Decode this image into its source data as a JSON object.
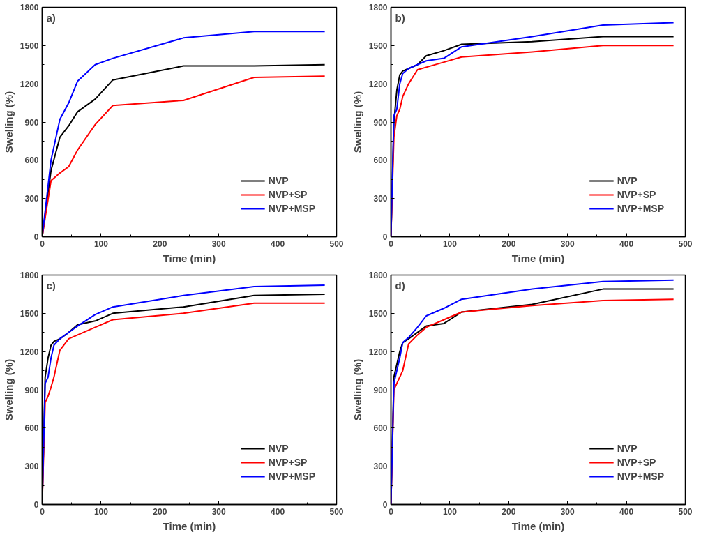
{
  "chart_data": [
    {
      "type": "line",
      "xlabel": "Time (min)",
      "ylabel": "Swelling (%)",
      "annotations": [
        "a)"
      ],
      "x": [
        0,
        15,
        30,
        45,
        60,
        90,
        120,
        240,
        360,
        480
      ],
      "xlim": [
        0,
        500
      ],
      "xticks": [
        0,
        100,
        200,
        300,
        400,
        500
      ],
      "ylim": [
        0,
        1800
      ],
      "yticks": [
        0,
        300,
        600,
        900,
        1200,
        1500,
        1800
      ],
      "legend": "bottom right",
      "grid": false,
      "marker": "none",
      "line_style": "solid",
      "series": [
        {
          "name": "NVP",
          "color": "#000000",
          "values": [
            0,
            520,
            780,
            870,
            980,
            1080,
            1230,
            1340,
            1340,
            1350
          ]
        },
        {
          "name": "NVP+SP",
          "color": "#ff0000",
          "values": [
            0,
            440,
            500,
            550,
            680,
            880,
            1030,
            1070,
            1250,
            1260
          ]
        },
        {
          "name": "NVP+MSP",
          "color": "#0000ff",
          "values": [
            0,
            600,
            920,
            1050,
            1220,
            1350,
            1400,
            1560,
            1610,
            1610
          ]
        }
      ]
    },
    {
      "type": "line",
      "xlabel": "Time (min)",
      "ylabel": "Swelling (%)",
      "annotations": [
        "b)"
      ],
      "x": [
        0,
        5,
        10,
        15,
        20,
        30,
        45,
        60,
        90,
        120,
        240,
        360,
        480
      ],
      "xlim": [
        0,
        500
      ],
      "xticks": [
        0,
        100,
        200,
        300,
        400,
        500
      ],
      "ylim": [
        0,
        1800
      ],
      "yticks": [
        0,
        300,
        600,
        900,
        1200,
        1500,
        1800
      ],
      "legend": "bottom right",
      "grid": false,
      "marker": "none",
      "line_style": "solid",
      "series": [
        {
          "name": "NVP",
          "color": "#000000",
          "values": [
            0,
            900,
            1150,
            1270,
            1300,
            1320,
            1350,
            1420,
            1460,
            1510,
            1530,
            1570,
            1570
          ]
        },
        {
          "name": "NVP+SP",
          "color": "#ff0000",
          "values": [
            0,
            780,
            950,
            1000,
            1100,
            1200,
            1310,
            1330,
            1370,
            1410,
            1450,
            1500,
            1500
          ]
        },
        {
          "name": "NVP+MSP",
          "color": "#0000ff",
          "values": [
            0,
            950,
            1000,
            1200,
            1280,
            1320,
            1350,
            1380,
            1400,
            1490,
            1570,
            1660,
            1680
          ]
        }
      ]
    },
    {
      "type": "line",
      "xlabel": "Time (min)",
      "ylabel": "Swelling (%)",
      "annotations": [
        "c)"
      ],
      "x": [
        0,
        5,
        10,
        15,
        20,
        30,
        45,
        60,
        90,
        120,
        240,
        360,
        480
      ],
      "xlim": [
        0,
        500
      ],
      "xticks": [
        0,
        100,
        200,
        300,
        400,
        500
      ],
      "ylim": [
        0,
        1800
      ],
      "yticks": [
        0,
        300,
        600,
        900,
        1200,
        1500,
        1800
      ],
      "legend": "bottom right",
      "grid": false,
      "marker": "none",
      "line_style": "solid",
      "series": [
        {
          "name": "NVP",
          "color": "#000000",
          "values": [
            0,
            1000,
            1150,
            1250,
            1280,
            1300,
            1350,
            1410,
            1440,
            1500,
            1550,
            1640,
            1650
          ]
        },
        {
          "name": "NVP+SP",
          "color": "#ff0000",
          "values": [
            0,
            800,
            850,
            920,
            1000,
            1210,
            1300,
            1330,
            1390,
            1450,
            1500,
            1580,
            1580
          ]
        },
        {
          "name": "NVP+MSP",
          "color": "#0000ff",
          "values": [
            0,
            950,
            1000,
            1150,
            1250,
            1300,
            1350,
            1400,
            1490,
            1550,
            1640,
            1710,
            1720
          ]
        }
      ]
    },
    {
      "type": "line",
      "xlabel": "Time (min)",
      "ylabel": "Swelling (%)",
      "annotations": [
        "d)"
      ],
      "x": [
        0,
        5,
        10,
        15,
        20,
        30,
        45,
        60,
        90,
        120,
        240,
        360,
        480
      ],
      "xlim": [
        0,
        500
      ],
      "xticks": [
        0,
        100,
        200,
        300,
        400,
        500
      ],
      "ylim": [
        0,
        1800
      ],
      "yticks": [
        0,
        300,
        600,
        900,
        1200,
        1500,
        1800
      ],
      "legend": "bottom right",
      "grid": false,
      "marker": "none",
      "line_style": "solid",
      "series": [
        {
          "name": "NVP",
          "color": "#000000",
          "values": [
            0,
            1000,
            1100,
            1200,
            1270,
            1300,
            1350,
            1400,
            1420,
            1510,
            1570,
            1690,
            1690
          ]
        },
        {
          "name": "NVP+SP",
          "color": "#ff0000",
          "values": [
            0,
            900,
            950,
            1000,
            1050,
            1260,
            1330,
            1390,
            1450,
            1510,
            1560,
            1600,
            1610
          ]
        },
        {
          "name": "NVP+MSP",
          "color": "#0000ff",
          "values": [
            0,
            950,
            1050,
            1150,
            1270,
            1310,
            1390,
            1480,
            1540,
            1610,
            1690,
            1750,
            1760
          ]
        }
      ]
    }
  ]
}
